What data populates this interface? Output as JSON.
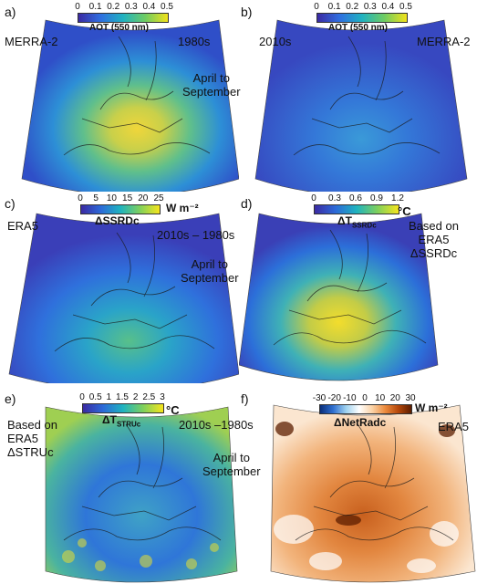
{
  "panels": [
    {
      "letter": "a)",
      "dataset": "MERRA-2",
      "period": "1980s",
      "season": "April to\nSeptember",
      "colorbar": {
        "ticks": [
          "0",
          "0.1",
          "0.2",
          "0.3",
          "0.4",
          "0.5"
        ],
        "title": "AOT (550 nm)",
        "scale": "viridis-like"
      }
    },
    {
      "letter": "b)",
      "dataset": "MERRA-2",
      "period": "2010s",
      "colorbar": {
        "ticks": [
          "0",
          "0.1",
          "0.2",
          "0.3",
          "0.4",
          "0.5"
        ],
        "title": "AOT (550 nm)",
        "scale": "viridis-like"
      }
    },
    {
      "letter": "c)",
      "dataset": "ERA5",
      "period": "2010s – 1980s",
      "season": "April to\nSeptember",
      "colorbar": {
        "ticks": [
          "0",
          "5",
          "10",
          "15",
          "20",
          "25"
        ],
        "title": "ΔSSRDc",
        "unit": "W m⁻²",
        "scale": "parula-like"
      }
    },
    {
      "letter": "d)",
      "based_on": "Based on\nERA5\nΔSSRDc",
      "colorbar": {
        "ticks": [
          "0",
          "0.3",
          "0.6",
          "0.9",
          "1.2"
        ],
        "title_main": "ΔT",
        "title_sub": "SSRDc",
        "unit": "°C",
        "scale": "parula-like"
      }
    },
    {
      "letter": "e)",
      "based_on": "Based on\nERA5\nΔSTRUc",
      "period": "2010s –1980s",
      "season": "April to\nSeptember",
      "colorbar": {
        "ticks": [
          "0",
          "0.5",
          "1",
          "1.5",
          "2",
          "2.5",
          "3"
        ],
        "title_main": "ΔT",
        "title_sub": "STRUc",
        "unit": "°C",
        "scale": "parula-like"
      }
    },
    {
      "letter": "f)",
      "dataset": "ERA5",
      "colorbar": {
        "ticks": [
          "-30",
          "-20",
          "-10",
          "0",
          "10",
          "20",
          "30"
        ],
        "title": "ΔNetRadc",
        "unit": "W m⁻²",
        "scale": "diverging-blue-white-brown"
      }
    }
  ],
  "colors": {
    "aot_low": "#3b2aa3",
    "aot_high": "#f2e21a",
    "warm": "#b5470a",
    "cool": "#2f6fd0",
    "land_outline": "#1a1a1a"
  }
}
